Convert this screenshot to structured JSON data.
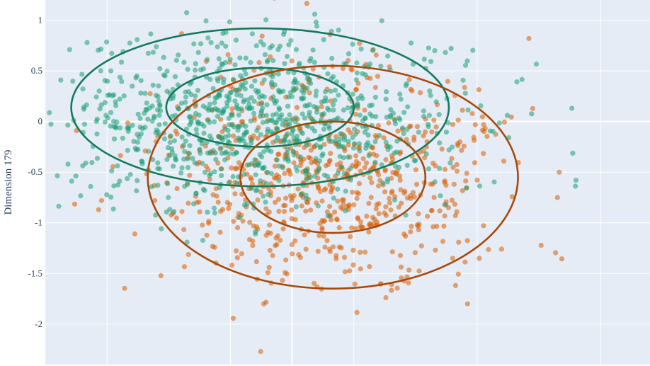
{
  "chart_data": {
    "type": "scatter",
    "ylabel": "Dimension 179",
    "ylim": [
      -2.4,
      1.2
    ],
    "xlim": [
      -2.0,
      2.9
    ],
    "yticks": [
      {
        "value": 1,
        "label": "1"
      },
      {
        "value": 0.5,
        "label": "0.5"
      },
      {
        "value": 0,
        "label": "0"
      },
      {
        "value": -0.5,
        "label": "-0.5"
      },
      {
        "value": -1,
        "label": "-1"
      },
      {
        "value": -1.5,
        "label": "-1.5"
      },
      {
        "value": -2,
        "label": "-2"
      }
    ],
    "xgrid": [
      -1.5,
      -0.5,
      0.5,
      1.5,
      2.5
    ],
    "xzeroline": 0,
    "grid": true,
    "colors": {
      "background": "#e5ecf6",
      "grid": "#ffffff",
      "green_points": "#1b9e77",
      "orange_points": "#d95f02",
      "green_ellipse": "#137a5b",
      "orange_ellipse": "#a8490a"
    },
    "series": [
      {
        "color": "#1b9e77",
        "center": [
          -0.26,
          0.0
        ],
        "spread": [
          0.82,
          0.42
        ],
        "n": 900,
        "seed": 7,
        "ellipses": [
          {
            "cx": -0.26,
            "cy": 0.14,
            "rx": 0.76,
            "ry": 0.39
          },
          {
            "cx": -0.26,
            "cy": 0.14,
            "rx": 1.53,
            "ry": 0.78
          }
        ]
      },
      {
        "color": "#d95f02",
        "center": [
          0.33,
          -0.56
        ],
        "spread": [
          0.72,
          0.52
        ],
        "n": 700,
        "seed": 13,
        "ellipses": [
          {
            "cx": 0.33,
            "cy": -0.55,
            "rx": 0.75,
            "ry": 0.55
          },
          {
            "cx": 0.33,
            "cy": -0.55,
            "rx": 1.5,
            "ry": 1.1
          }
        ]
      }
    ]
  }
}
